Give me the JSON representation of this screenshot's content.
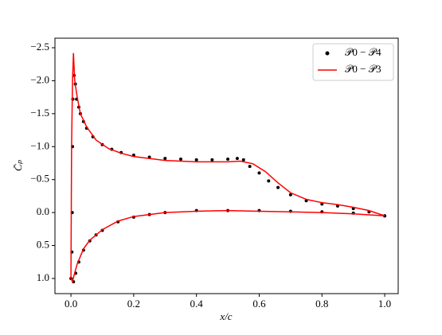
{
  "chart_data": {
    "type": "line",
    "xlabel": "x/c",
    "ylabel": "C̄ₚ",
    "xlim": [
      -0.051,
      1.043
    ],
    "ylim": [
      -2.645,
      1.23
    ],
    "invert_y": true,
    "xticks": [
      {
        "value": 0.0,
        "label": "0.0"
      },
      0.2,
      0.4,
      0.6,
      0.8,
      {
        "value": 1.0,
        "label": "1.0"
      }
    ],
    "yticks": [
      {
        "value": -2.5,
        "label": "−2.5"
      },
      {
        "value": -2.0,
        "label": "−2.0"
      },
      {
        "value": -1.5,
        "label": "−1.5"
      },
      {
        "value": -1.0,
        "label": "−1.0"
      },
      {
        "value": -0.5,
        "label": "−0.5"
      },
      {
        "value": 0.0,
        "label": "0.0"
      },
      {
        "value": 0.5,
        "label": "0.5"
      },
      {
        "value": 1.0,
        "label": "1.0"
      }
    ],
    "legend": "upper right",
    "series": [
      {
        "name": "𝒫0 − 𝒫4",
        "color": "#000000",
        "marker": "dot",
        "x": [
          0.0,
          0.003,
          0.004,
          0.005,
          0.006,
          0.01,
          0.014,
          0.018,
          0.025,
          0.03,
          0.04,
          0.05,
          0.07,
          0.1,
          0.13,
          0.16,
          0.2,
          0.25,
          0.3,
          0.35,
          0.4,
          0.45,
          0.5,
          0.53,
          0.55,
          0.57,
          0.6,
          0.63,
          0.66,
          0.7,
          0.75,
          0.8,
          0.85,
          0.9,
          0.95,
          1.0,
          0.008,
          0.015,
          0.025,
          0.04,
          0.06,
          0.08,
          0.1,
          0.15,
          0.2,
          0.25,
          0.3,
          0.4,
          0.5,
          0.6,
          0.7,
          0.8,
          0.9,
          1.0
        ],
        "values": [
          1.0,
          0.6,
          0.0,
          -1.0,
          -1.72,
          -2.08,
          -1.95,
          -1.72,
          -1.6,
          -1.5,
          -1.38,
          -1.28,
          -1.15,
          -1.03,
          -0.96,
          -0.91,
          -0.87,
          -0.84,
          -0.82,
          -0.81,
          -0.8,
          -0.8,
          -0.81,
          -0.82,
          -0.8,
          -0.7,
          -0.6,
          -0.48,
          -0.38,
          -0.27,
          -0.18,
          -0.13,
          -0.1,
          -0.06,
          -0.01,
          0.05,
          1.05,
          0.92,
          0.75,
          0.57,
          0.43,
          0.34,
          0.27,
          0.14,
          0.07,
          0.03,
          0.0,
          -0.03,
          -0.03,
          -0.03,
          -0.02,
          -0.01,
          0.01,
          0.05
        ]
      },
      {
        "name": "𝒫0 − 𝒫3",
        "color": "#ff0000",
        "marker": "line",
        "x": [
          1.0,
          0.95,
          0.9,
          0.85,
          0.8,
          0.75,
          0.7,
          0.66,
          0.62,
          0.58,
          0.54,
          0.5,
          0.4,
          0.3,
          0.2,
          0.16,
          0.12,
          0.08,
          0.05,
          0.03,
          0.02,
          0.012,
          0.008,
          0.005,
          0.002,
          0.0,
          0.005,
          0.01,
          0.02,
          0.04,
          0.06,
          0.1,
          0.15,
          0.2,
          0.3,
          0.4,
          0.5,
          0.6,
          0.7,
          0.8,
          0.9,
          1.0
        ],
        "values": [
          0.05,
          -0.03,
          -0.08,
          -0.12,
          -0.15,
          -0.2,
          -0.3,
          -0.45,
          -0.62,
          -0.74,
          -0.78,
          -0.77,
          -0.77,
          -0.79,
          -0.85,
          -0.9,
          -0.97,
          -1.1,
          -1.3,
          -1.5,
          -1.75,
          -2.0,
          -2.42,
          -2.0,
          -1.0,
          1.0,
          1.05,
          0.95,
          0.78,
          0.55,
          0.42,
          0.26,
          0.13,
          0.06,
          0.0,
          -0.02,
          -0.03,
          -0.02,
          -0.01,
          0.0,
          0.02,
          0.05
        ]
      }
    ]
  }
}
